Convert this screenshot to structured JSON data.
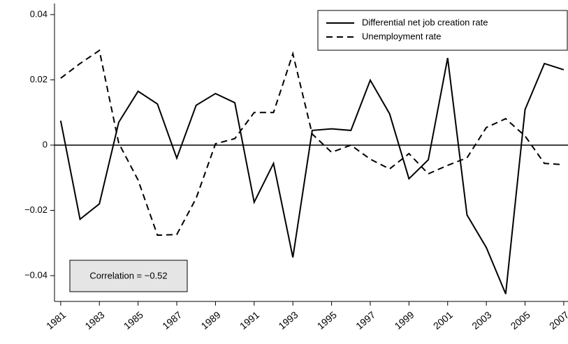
{
  "chart_data": {
    "type": "line",
    "annotation": "Correlation = −0.52",
    "x": [
      1981,
      1982,
      1983,
      1984,
      1985,
      1986,
      1987,
      1988,
      1989,
      1990,
      1991,
      1992,
      1993,
      1994,
      1995,
      1996,
      1997,
      1998,
      1999,
      2000,
      2001,
      2002,
      2003,
      2004,
      2005,
      2006,
      2007
    ],
    "series": [
      {
        "name": "Differential net job creation rate",
        "color": "#000000",
        "dash": "solid",
        "values": [
          0.0075,
          -0.0227,
          -0.018,
          0.007,
          0.0165,
          0.0126,
          -0.004,
          0.0122,
          0.0158,
          0.013,
          -0.0175,
          -0.0056,
          -0.0344,
          0.0045,
          0.005,
          0.0045,
          0.0199,
          0.0096,
          -0.0103,
          -0.0045,
          0.0267,
          -0.0214,
          -0.0314,
          -0.0456,
          0.0109,
          0.025,
          0.0231
        ]
      },
      {
        "name": "Unemployment rate",
        "color": "#000000",
        "dash": "dashed",
        "values": [
          0.0205,
          0.025,
          0.029,
          0.0006,
          -0.0107,
          -0.0276,
          -0.0274,
          -0.0163,
          0.0004,
          0.002,
          0.01,
          0.01,
          0.028,
          0.0034,
          -0.0022,
          0,
          -0.0043,
          -0.0073,
          -0.0026,
          -0.0088,
          -0.0062,
          -0.0039,
          0.0054,
          0.0081,
          0.0028,
          -0.0056,
          -0.006
        ]
      }
    ],
    "xlim": [
      1980.68,
      2007.22
    ],
    "xticks": [
      1981,
      1983,
      1985,
      1987,
      1989,
      1991,
      1993,
      1995,
      1997,
      1999,
      2001,
      2003,
      2005,
      2007
    ],
    "ylim": [
      -0.0479,
      0.0434
    ],
    "yticks": [
      {
        "value": -0.04,
        "label": "−0.04"
      },
      {
        "value": -0.02,
        "label": "−0.02"
      },
      0,
      0.02,
      0.04
    ],
    "hline": 0,
    "legend": "upper right"
  }
}
